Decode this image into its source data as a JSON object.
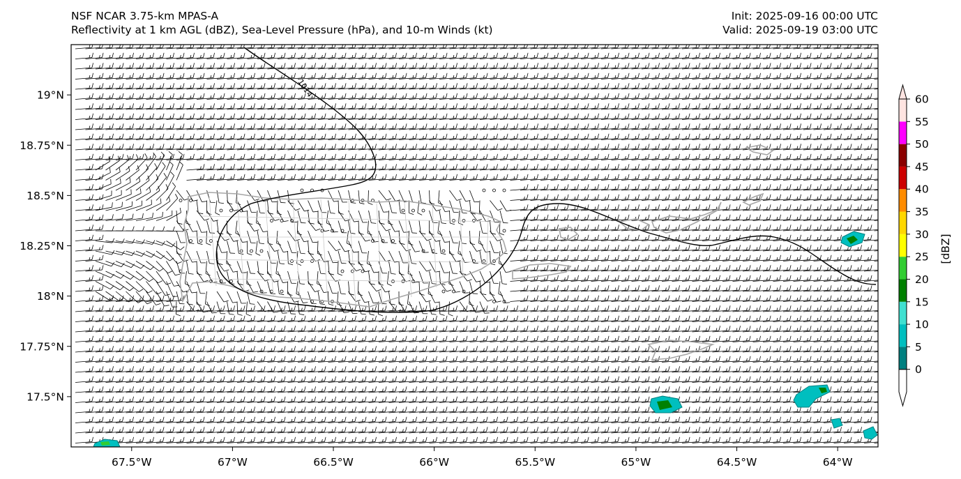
{
  "header": {
    "title_left_line1": "NSF NCAR 3.75-km MPAS-A",
    "title_left_line2": "Reflectivity at 1 km AGL (dBZ), Sea-Level Pressure (hPa), and 10-m Winds (kt)",
    "title_right_line1": "Init: 2025-09-16 00:00 UTC",
    "title_right_line2": "Valid: 2025-09-19 03:00 UTC"
  },
  "map": {
    "lon_range": [
      -67.8,
      -63.8
    ],
    "lat_range": [
      17.25,
      19.25
    ],
    "lon_ticks": [
      {
        "value": -67.5,
        "label": "67.5°W"
      },
      {
        "value": -67.0,
        "label": "67°W"
      },
      {
        "value": -66.5,
        "label": "66.5°W"
      },
      {
        "value": -66.0,
        "label": "66°W"
      },
      {
        "value": -65.5,
        "label": "65.5°W"
      },
      {
        "value": -65.0,
        "label": "65°W"
      },
      {
        "value": -64.5,
        "label": "64.5°W"
      },
      {
        "value": -64.0,
        "label": "64°W"
      }
    ],
    "lat_ticks": [
      {
        "value": 19.0,
        "label": "19°N"
      },
      {
        "value": 18.75,
        "label": "18.75°N"
      },
      {
        "value": 18.5,
        "label": "18.5°N"
      },
      {
        "value": 18.25,
        "label": "18.25°N"
      },
      {
        "value": 18.0,
        "label": "18°N"
      },
      {
        "value": 17.75,
        "label": "17.75°N"
      },
      {
        "value": 17.5,
        "label": "17.5°N"
      }
    ],
    "isobar_label": "1014",
    "coastline_color": "#a6a6a6",
    "ocean_background": "#ffffff",
    "wind_barb_color": "#000000"
  },
  "colorbar": {
    "label": "[dBZ]",
    "levels": [
      {
        "value": "0",
        "color": "#008080"
      },
      {
        "value": "5",
        "color": "#00bfbf"
      },
      {
        "value": "10",
        "color": "#40e0d0"
      },
      {
        "value": "15",
        "color": "#008000"
      },
      {
        "value": "20",
        "color": "#32cd32"
      },
      {
        "value": "25",
        "color": "#ffff00"
      },
      {
        "value": "30",
        "color": "#ffd700"
      },
      {
        "value": "35",
        "color": "#ff8c00"
      },
      {
        "value": "40",
        "color": "#cd0000"
      },
      {
        "value": "45",
        "color": "#8b0000"
      },
      {
        "value": "50",
        "color": "#ff00ff"
      },
      {
        "value": "55",
        "color": "#ffe4e1"
      },
      {
        "value": "60",
        "color": ""
      }
    ]
  }
}
